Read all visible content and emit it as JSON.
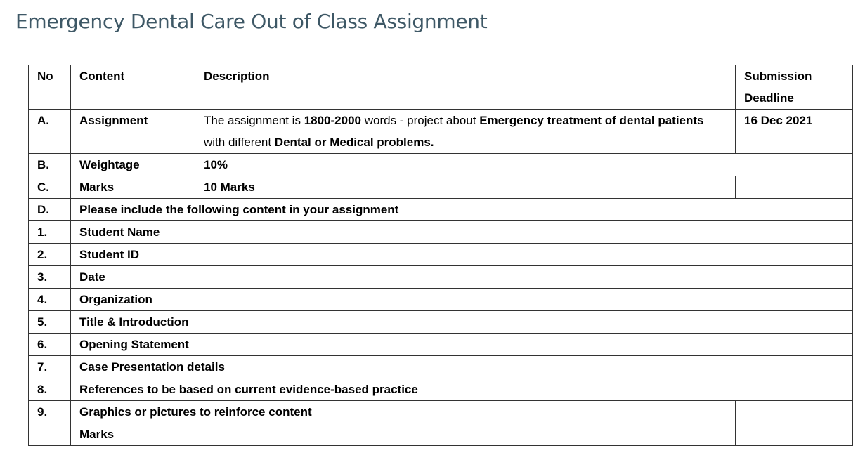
{
  "title": "Emergency Dental Care Out of Class Assignment",
  "table": {
    "header": [
      "No",
      "Content",
      "Description",
      "Submission Deadline"
    ],
    "rows": [
      {
        "no": "A.",
        "content": "Assignment",
        "description": [
          {
            "text": "The assignment is ",
            "bold": false
          },
          {
            "text": "1800-2000",
            "bold": true
          },
          {
            "text": " words - project about ",
            "bold": false
          },
          {
            "text": "Emergency treatment of dental patients",
            "bold": true
          },
          {
            "text": " with different ",
            "bold": false
          },
          {
            "text": "Dental or Medical problems.",
            "bold": true
          }
        ],
        "deadline": "16 Dec 2021"
      },
      {
        "no": "B.",
        "content": "Weightage",
        "value": "10%"
      },
      {
        "no": "C.",
        "content": "Marks",
        "value": "10 Marks"
      },
      {
        "no": "D.",
        "content": "Please include the following content in your assignment"
      },
      {
        "no": "1.",
        "content": "Student Name"
      },
      {
        "no": "2.",
        "content": "Student ID"
      },
      {
        "no": "3.",
        "content": "Date"
      },
      {
        "no": "4.",
        "content": "Organization"
      },
      {
        "no": "5.",
        "content": "Title & Introduction"
      },
      {
        "no": "6.",
        "content": "Opening Statement"
      },
      {
        "no": "7.",
        "content": "Case Presentation details"
      },
      {
        "no": "8.",
        "content": "References to be based on current evidence-based practice"
      },
      {
        "no": "9.",
        "content": "Graphics or pictures to reinforce content"
      },
      {
        "content": "Marks"
      }
    ]
  }
}
